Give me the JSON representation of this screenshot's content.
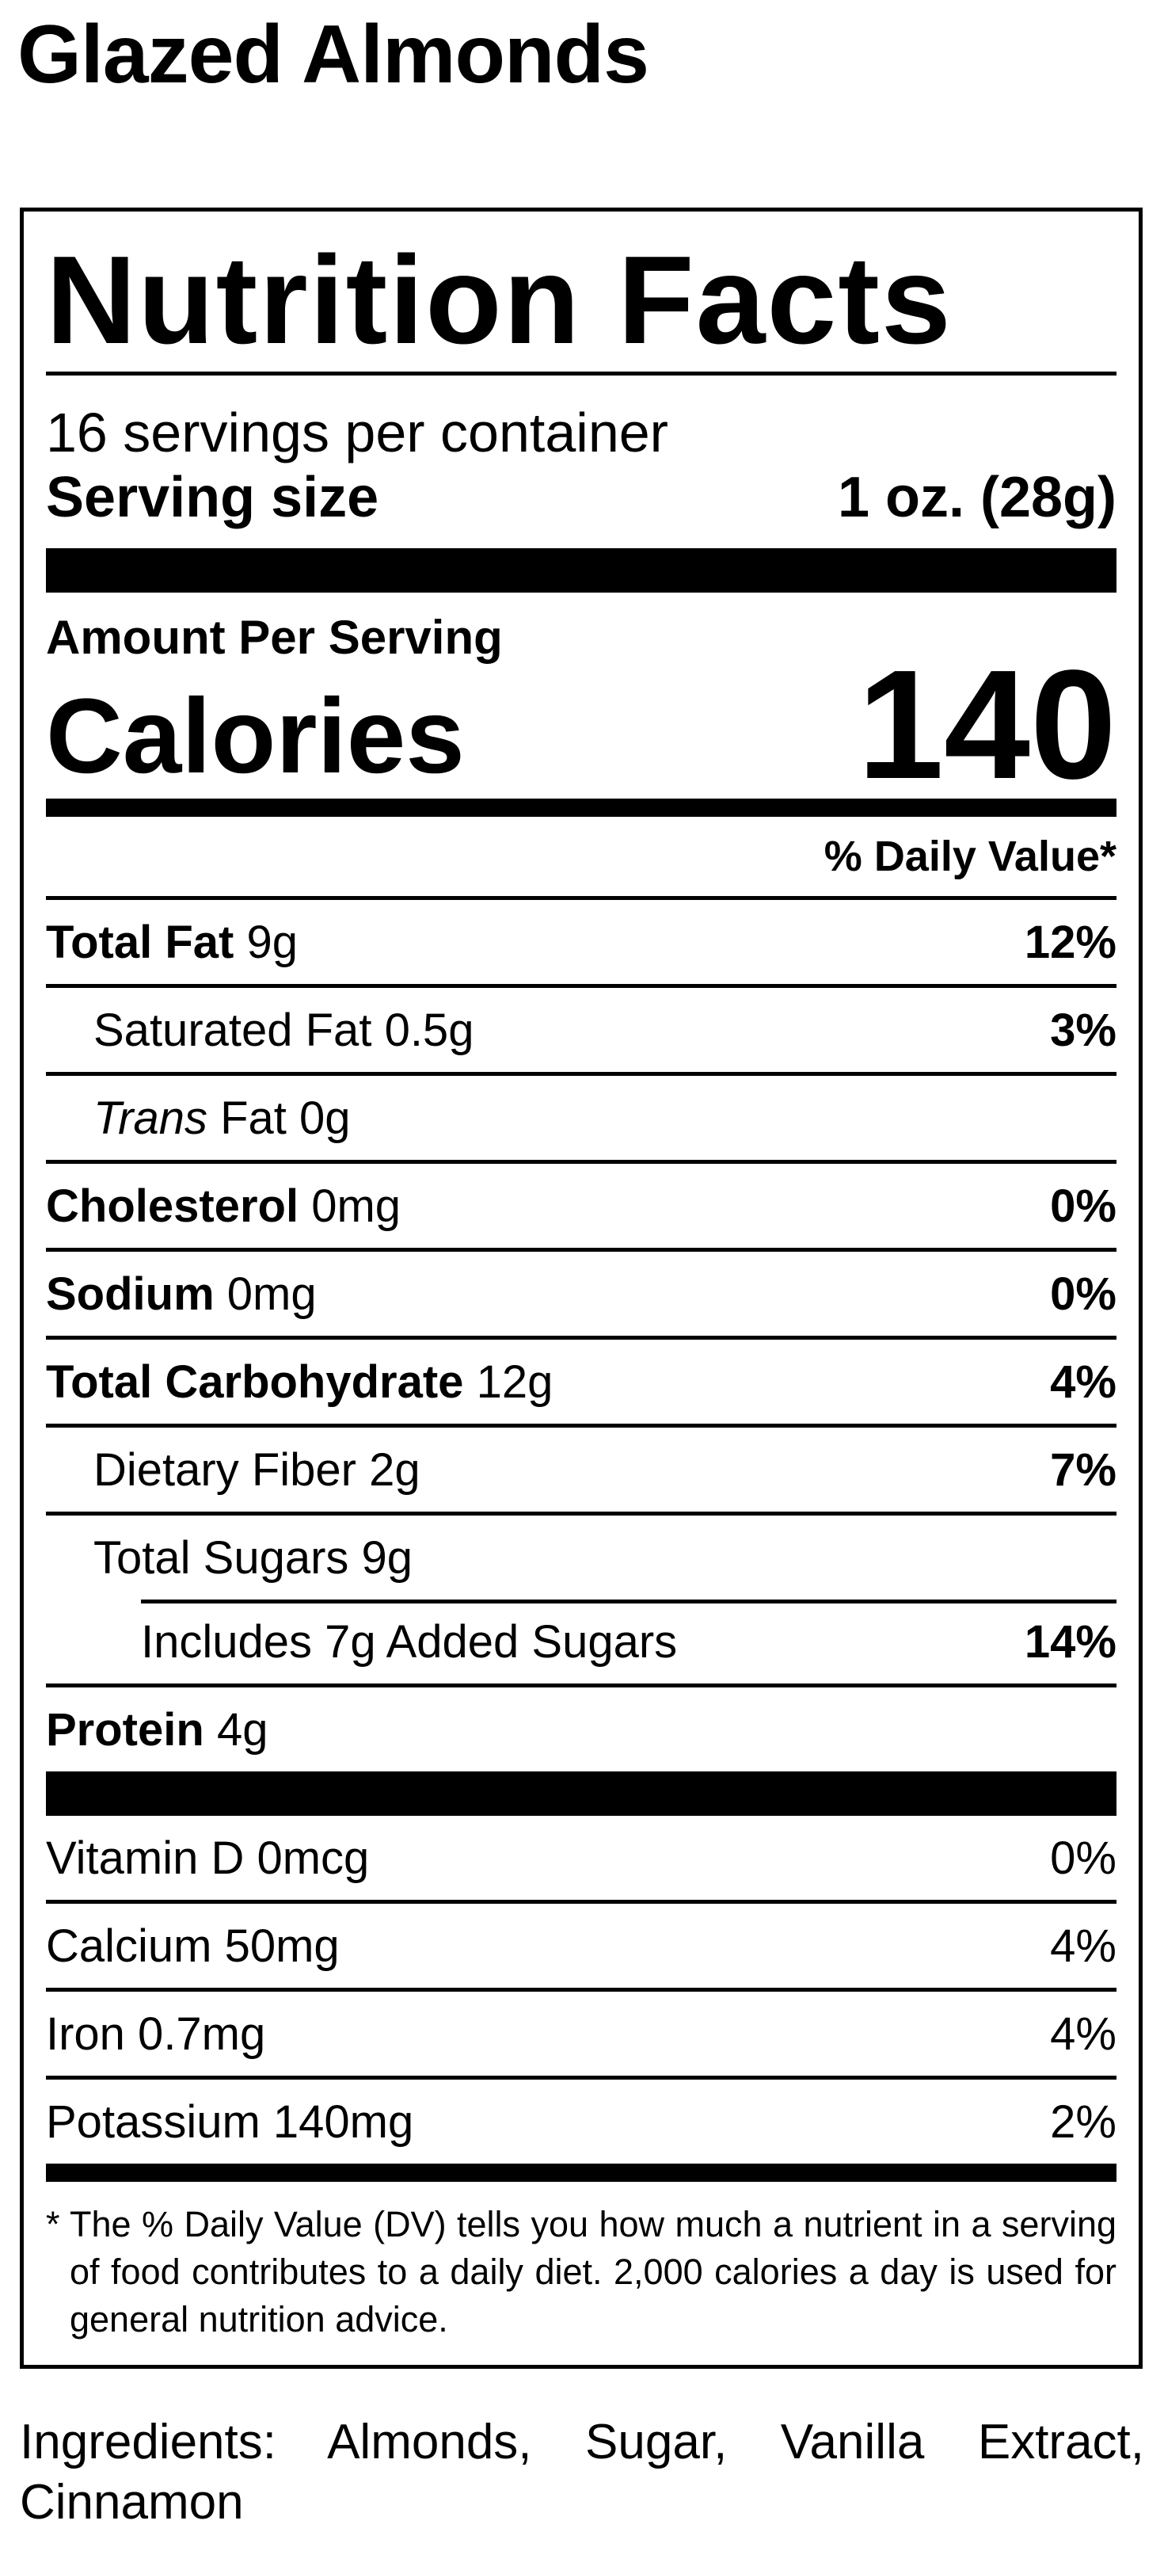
{
  "product_name": "Glazed Almonds",
  "label": {
    "heading": "Nutrition Facts",
    "servings_per_container": "16 servings per container",
    "serving_size_label": "Serving size",
    "serving_size_value": "1 oz. (28g)",
    "amount_per_serving": "Amount Per Serving",
    "calories_label": "Calories",
    "calories_value": "140",
    "daily_value_header": "% Daily Value*",
    "nutrients": [
      {
        "name": "Total Fat",
        "amount": "9g",
        "dv": "12%"
      },
      {
        "name": "Saturated Fat",
        "amount": "0.5g",
        "dv": "3%"
      },
      {
        "name": "Trans",
        "name_suffix": "Fat",
        "amount": "0g",
        "dv": ""
      },
      {
        "name": "Cholesterol",
        "amount": "0mg",
        "dv": "0%"
      },
      {
        "name": "Sodium",
        "amount": "0mg",
        "dv": "0%"
      },
      {
        "name": "Total Carbohydrate",
        "amount": "12g",
        "dv": "4%"
      },
      {
        "name": "Dietary Fiber",
        "amount": "2g",
        "dv": "7%"
      },
      {
        "name": "Total Sugars",
        "amount": "9g",
        "dv": ""
      },
      {
        "name": "Includes 7g Added Sugars",
        "dv": "14%"
      },
      {
        "name": "Protein",
        "amount": "4g",
        "dv": ""
      }
    ],
    "vitamins": [
      {
        "text": "Vitamin D 0mcg",
        "dv": "0%"
      },
      {
        "text": "Calcium 50mg",
        "dv": "4%"
      },
      {
        "text": "Iron 0.7mg",
        "dv": "4%"
      },
      {
        "text": "Potassium 140mg",
        "dv": "2%"
      }
    ],
    "footnote_star": "*",
    "footnote": "The % Daily Value (DV) tells you how much a nutrient in a serving of food contributes to a daily diet. 2,000 calories a day is used for general nutrition advice."
  },
  "ingredients": "Ingredients: Almonds, Sugar, Vanilla Extract, Cinnamon"
}
